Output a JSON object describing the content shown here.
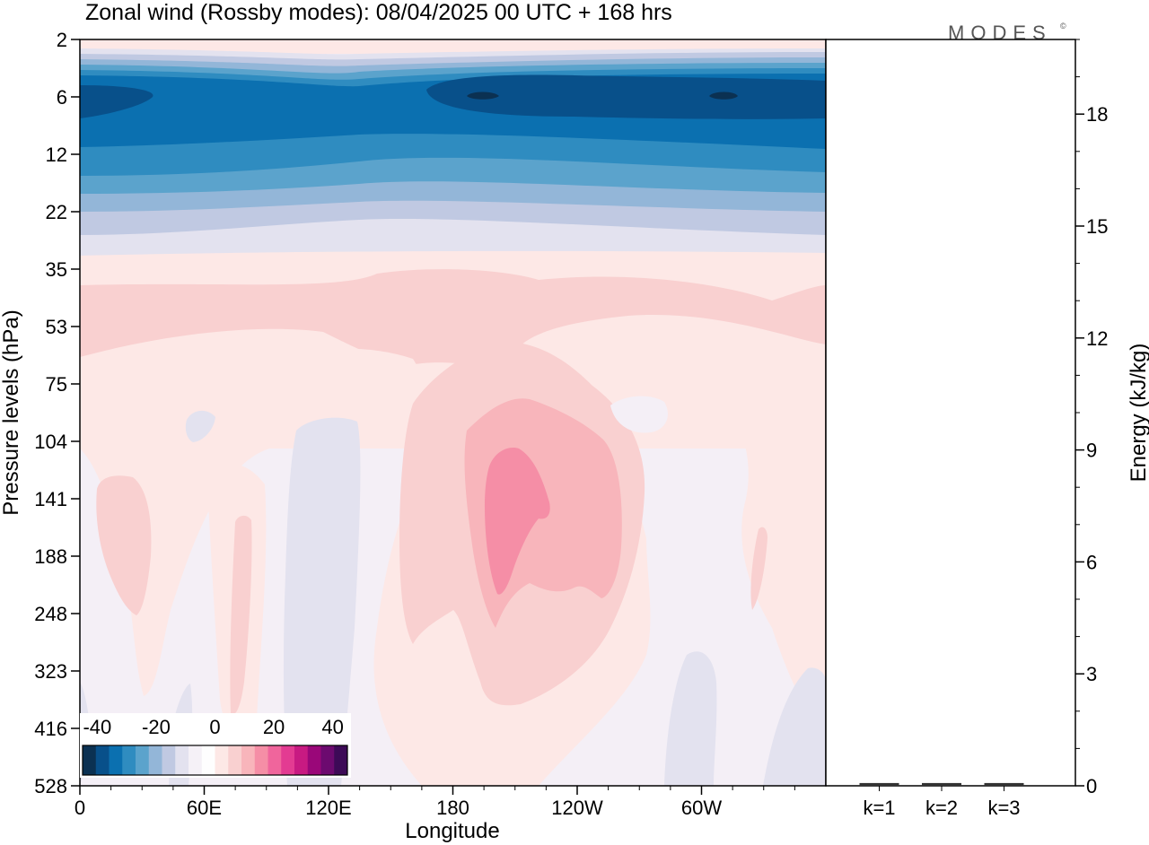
{
  "logo": {
    "text": "MODES",
    "mark": "©"
  },
  "chart_data": [
    {
      "type": "heatmap",
      "title": "Zonal wind (Rossby modes):  08/04/2025  00 UTC  + 168 hrs",
      "xlabel": "Longitude",
      "ylabel": "Pressure levels (hPa)",
      "x_ticks": [
        "0",
        "60E",
        "120E",
        "180",
        "120W",
        "60W"
      ],
      "x_tick_values": [
        0,
        60,
        120,
        180,
        240,
        300
      ],
      "xlim": [
        0,
        360
      ],
      "y_ticks": [
        "2",
        "6",
        "12",
        "22",
        "35",
        "53",
        "75",
        "104",
        "141",
        "188",
        "248",
        "323",
        "416",
        "528"
      ],
      "y_scale": "level-index",
      "colorbar": {
        "labels": [
          "-40",
          "-20",
          "0",
          "20",
          "40"
        ],
        "label_values": [
          -40,
          -20,
          0,
          20,
          40
        ],
        "range": [
          -45,
          45
        ],
        "colors": [
          "#0b3152",
          "#08508a",
          "#0b70b0",
          "#2f8cc0",
          "#5ba3cc",
          "#93b6d8",
          "#c0c9e2",
          "#e3e2ef",
          "#f5f1f7",
          "#fefefe",
          "#fde8e6",
          "#f9d0d0",
          "#f8b5bb",
          "#f58ea6",
          "#f0659c",
          "#e33b92",
          "#c81a82",
          "#9a0779",
          "#6c0a6f",
          "#3d0a57"
        ]
      },
      "grid": false
    },
    {
      "type": "bar",
      "categories": [
        "k=1",
        "k=2",
        "k=3"
      ],
      "values": [
        0.05,
        0.05,
        0.05
      ],
      "ylabel": "Energy (kJ/kg)",
      "y_ticks": [
        "0",
        "3",
        "6",
        "9",
        "12",
        "15",
        "18"
      ],
      "ylim": [
        0,
        20
      ]
    }
  ]
}
